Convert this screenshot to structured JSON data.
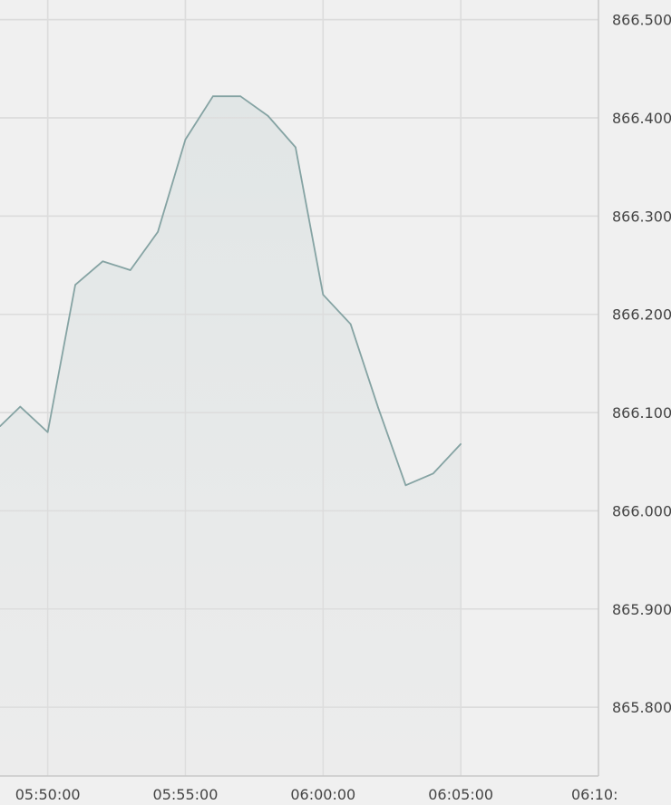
{
  "chart_data": {
    "type": "area",
    "title": "",
    "xlabel": "",
    "ylabel": "",
    "x_tick_labels": [
      "05:50:00",
      "05:55:00",
      "06:00:00",
      "06:05:00",
      "06:10:"
    ],
    "y_tick_labels": [
      "866.500",
      "866.400",
      "866.300",
      "866.200",
      "866.100",
      "866.000",
      "865.900",
      "865.800"
    ],
    "xlim": [
      "05:48:16",
      "06:10:00"
    ],
    "ylim": [
      865.73,
      866.52
    ],
    "y_axis_side": "right",
    "grid": true,
    "legend": "none",
    "colors": {
      "background": "#f0f0f0",
      "line": "#85a3a3",
      "fill_top": "#e1e6e6",
      "fill_bottom": "#ececec",
      "grid": "#dcdcdc",
      "axis": "#c8c8c8",
      "tick_text": "#444444"
    },
    "series": [
      {
        "x": [
          "05:48:16",
          "05:49:00",
          "05:50:00",
          "05:51:00",
          "05:52:00",
          "05:53:00",
          "05:54:00",
          "05:55:00",
          "05:56:00",
          "05:57:00",
          "05:58:00",
          "05:59:00",
          "06:00:00",
          "06:01:00",
          "06:02:00",
          "06:03:00",
          "06:04:00",
          "06:05:00"
        ],
        "y": [
          866.086,
          866.106,
          866.08,
          866.23,
          866.254,
          866.245,
          866.284,
          866.378,
          866.422,
          866.422,
          866.402,
          866.37,
          866.22,
          866.19,
          866.105,
          866.026,
          866.038,
          866.068
        ]
      }
    ]
  }
}
